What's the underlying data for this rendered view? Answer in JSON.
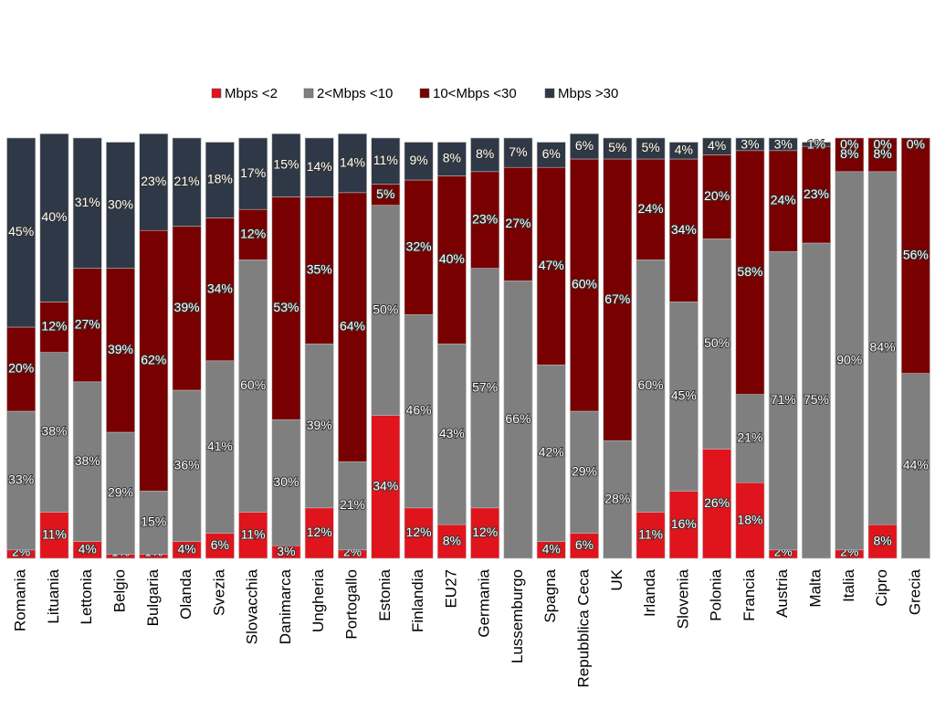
{
  "chart_data": {
    "type": "stacked_bar_100",
    "categories": [
      "Romania",
      "Lituania",
      "Lettonia",
      "Belgio",
      "Bulgaria",
      "Olanda",
      "Svezia",
      "Slovacchia",
      "Danimarca",
      "Ungheria",
      "Portogallo",
      "Estonia",
      "Finlandia",
      "EU27",
      "Germania",
      "Lussemburgo",
      "Spagna",
      "Repubblica Ceca",
      "UK",
      "Irlanda",
      "Slovenia",
      "Polonia",
      "Francia",
      "Austria",
      "Malta",
      "Italia",
      "Cipro",
      "Grecia"
    ],
    "ylim": [
      0,
      100
    ],
    "series": [
      {
        "name": "Mbps <2",
        "color": "#e0141c",
        "values": [
          2,
          11,
          4,
          1,
          1,
          4,
          6,
          11,
          3,
          12,
          2,
          34,
          12,
          8,
          12,
          0,
          4,
          6,
          0,
          11,
          16,
          26,
          18,
          2,
          0,
          2,
          8,
          0
        ],
        "value_labels": [
          "2%",
          "11%",
          "4%",
          "1%",
          "1%",
          "4%",
          "6%",
          "11%",
          "3%",
          "12%",
          "2%",
          "34%",
          "12%",
          "8%",
          "12%",
          null,
          "4%",
          "6%",
          null,
          "11%",
          "16%",
          "26%",
          "18%",
          "2%",
          null,
          "2%",
          "8%",
          null
        ]
      },
      {
        "name": "2<Mbps <10",
        "color": "#7f7f7f",
        "values": [
          33,
          38,
          38,
          29,
          15,
          36,
          41,
          60,
          30,
          39,
          21,
          50,
          46,
          43,
          57,
          66,
          42,
          29,
          28,
          60,
          45,
          50,
          21,
          71,
          75,
          90,
          84,
          44
        ],
        "value_labels": [
          "33%",
          "38%",
          "38%",
          "29%",
          "15%",
          "36%",
          "41%",
          "60%",
          "30%",
          "39%",
          "21%",
          "50%",
          "46%",
          "43%",
          "57%",
          "66%",
          "42%",
          "29%",
          "28%",
          "60%",
          "45%",
          "50%",
          "21%",
          "71%",
          "75%",
          "90%",
          "84%",
          "44%"
        ]
      },
      {
        "name": "10<Mbps <30",
        "color": "#780000",
        "values": [
          20,
          12,
          27,
          39,
          62,
          39,
          34,
          12,
          53,
          35,
          64,
          5,
          32,
          40,
          23,
          27,
          47,
          60,
          67,
          24,
          34,
          20,
          58,
          24,
          23,
          8,
          8,
          56
        ],
        "value_labels": [
          "20%",
          "12%",
          "27%",
          "39%",
          "62%",
          "39%",
          "34%",
          "12%",
          "53%",
          "35%",
          "64%",
          "5%",
          "32%",
          "40%",
          "23%",
          "27%",
          "47%",
          "60%",
          "67%",
          "24%",
          "34%",
          "20%",
          "58%",
          "24%",
          "23%",
          "8%",
          "8%",
          "56%"
        ]
      },
      {
        "name": "Mbps >30",
        "color": "#2e3846",
        "values": [
          45,
          40,
          31,
          30,
          23,
          21,
          18,
          17,
          15,
          14,
          14,
          11,
          9,
          8,
          8,
          7,
          6,
          6,
          5,
          5,
          4,
          4,
          3,
          3,
          1,
          0,
          0,
          0
        ],
        "value_labels": [
          "45%",
          "40%",
          "31%",
          "30%",
          "23%",
          "21%",
          "18%",
          "17%",
          "15%",
          "14%",
          "14%",
          "11%",
          "9%",
          "8%",
          "8%",
          "7%",
          "6%",
          "6%",
          "5%",
          "5%",
          "4%",
          "4%",
          "3%",
          "3%",
          "1%",
          "0%",
          "0%",
          "0%"
        ]
      }
    ]
  }
}
